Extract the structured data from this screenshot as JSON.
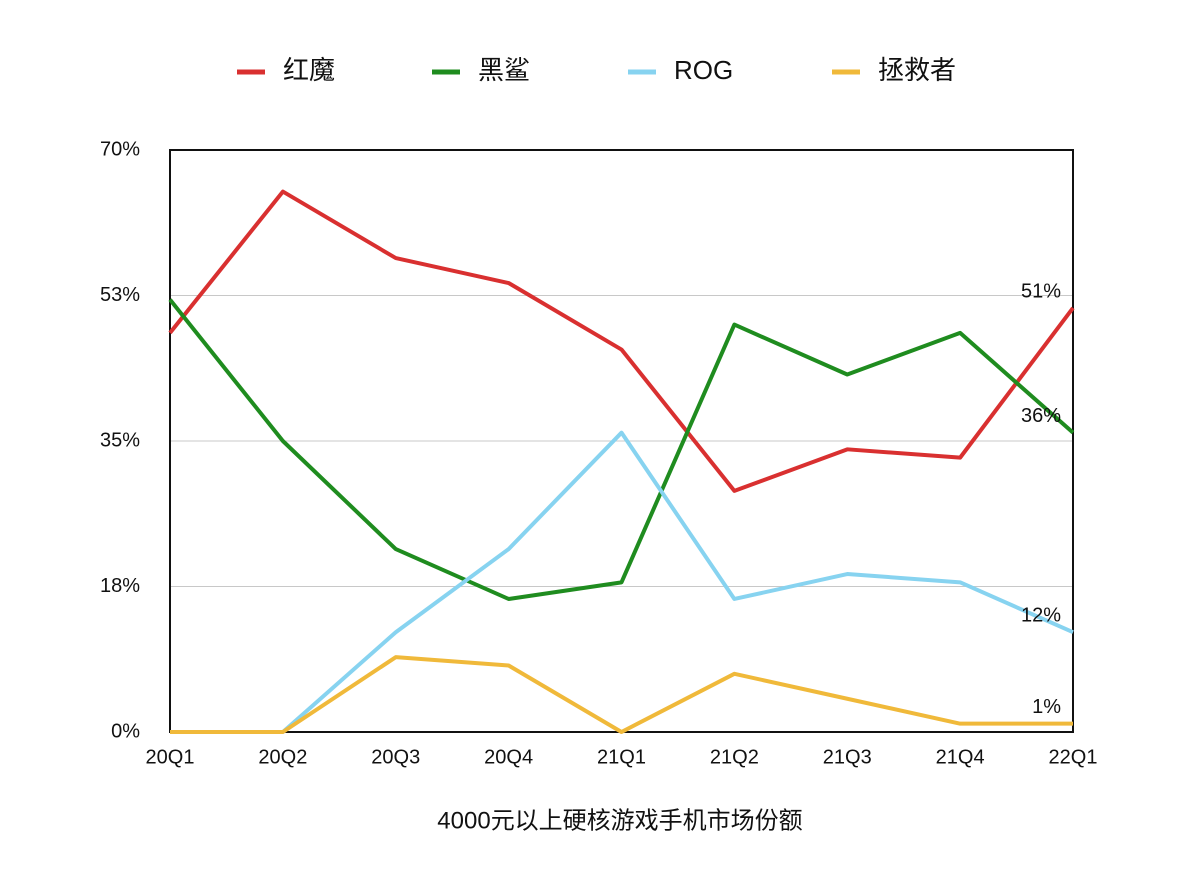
{
  "chart_data": {
    "type": "line",
    "title": "4000元以上硬核游戏手机市场份额",
    "categories": [
      "20Q1",
      "20Q2",
      "20Q3",
      "20Q4",
      "21Q1",
      "21Q2",
      "21Q3",
      "21Q4",
      "22Q1"
    ],
    "series": [
      {
        "name": "红魔",
        "color": "#d93030",
        "values": [
          48,
          65,
          57,
          54,
          46,
          29,
          34,
          33,
          51
        ],
        "value_labels": [
          null,
          null,
          null,
          null,
          null,
          null,
          null,
          null,
          "51%"
        ]
      },
      {
        "name": "黑鲨",
        "color": "#1f8c1f",
        "values": [
          52,
          35,
          22,
          16,
          18,
          49,
          43,
          48,
          36
        ],
        "value_labels": [
          null,
          null,
          null,
          null,
          null,
          null,
          null,
          null,
          "36%"
        ]
      },
      {
        "name": "ROG",
        "color": "#87d3f0",
        "values": [
          0,
          0,
          12,
          22,
          36,
          16,
          19,
          18,
          12
        ],
        "value_labels": [
          null,
          null,
          null,
          null,
          null,
          null,
          null,
          null,
          "12%"
        ]
      },
      {
        "name": "拯救者",
        "color": "#f0b93a",
        "values": [
          0,
          0,
          9,
          8,
          0,
          7,
          4,
          1,
          1
        ],
        "value_labels": [
          null,
          null,
          null,
          null,
          null,
          null,
          null,
          null,
          "1%"
        ]
      }
    ],
    "ylim": [
      0,
      70
    ],
    "yticks": [
      {
        "value": 0,
        "label": "0%"
      },
      {
        "value": 17.5,
        "label": "18%"
      },
      {
        "value": 35,
        "label": "35%"
      },
      {
        "value": 52.5,
        "label": "53%"
      },
      {
        "value": 70,
        "label": "70%"
      }
    ],
    "grid": true,
    "legend": "top"
  }
}
